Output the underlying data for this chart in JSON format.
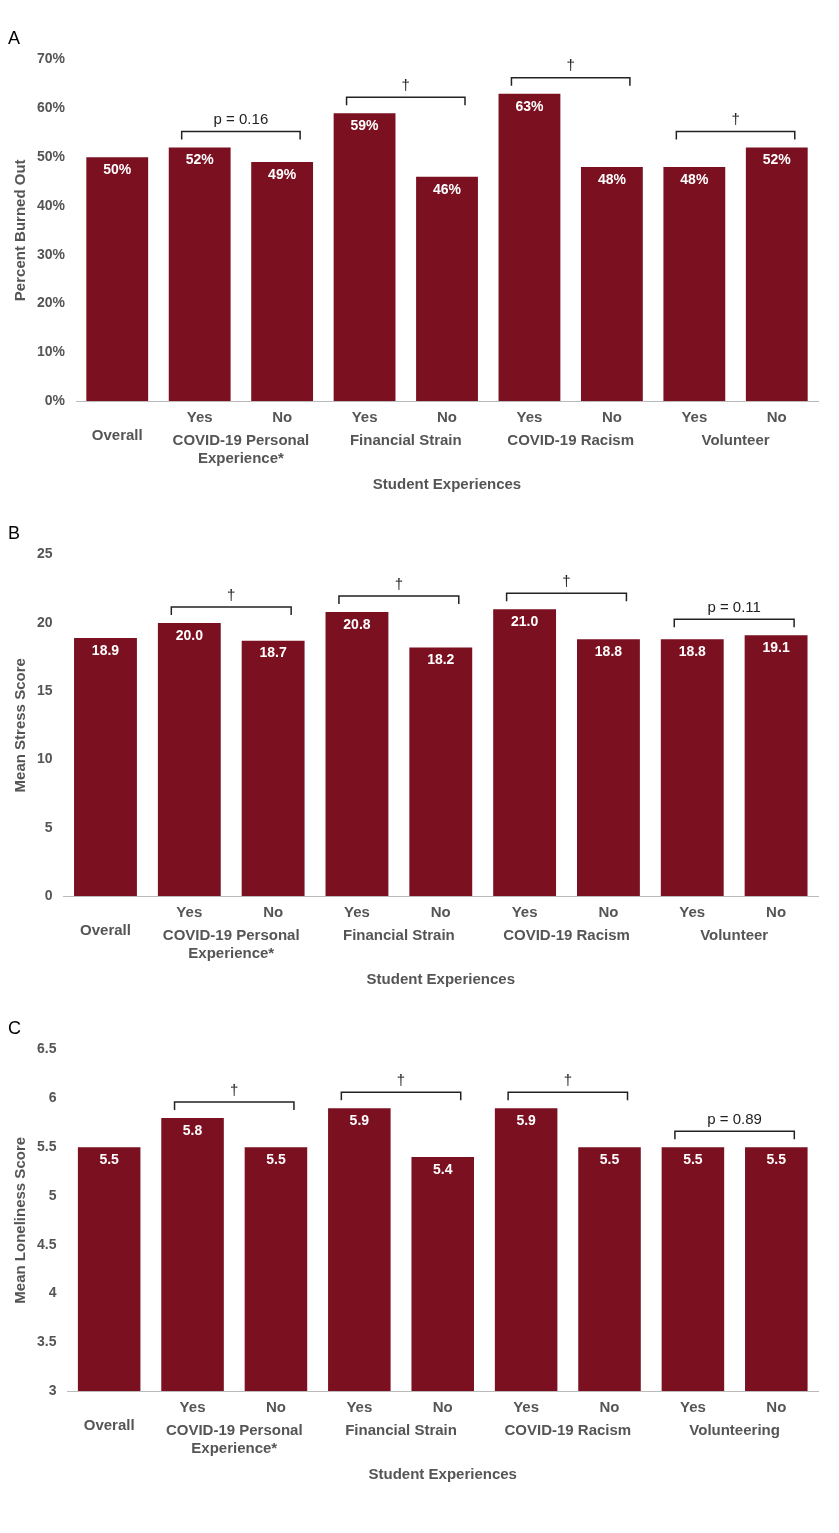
{
  "chart_data": [
    {
      "type": "bar",
      "title": "A",
      "xlabel": "Student Experiences",
      "ylabel": "Percent Burned Out",
      "categories": [
        "Overall",
        "Yes",
        "No",
        "Yes",
        "No",
        "Yes",
        "No",
        "Yes",
        "No"
      ],
      "values": [
        50,
        52,
        49,
        59,
        46,
        63,
        48,
        48,
        52
      ],
      "value_labels": [
        "50%",
        "52%",
        "49%",
        "59%",
        "46%",
        "63%",
        "48%",
        "48%",
        "52%"
      ],
      "color": "#7b1020",
      "ylim": [
        0,
        70
      ],
      "yticks": [
        {
          "value": 0,
          "label": "0%"
        },
        {
          "value": 10,
          "label": "10%"
        },
        {
          "value": 20,
          "label": "20%"
        },
        {
          "value": 30,
          "label": "30%"
        },
        {
          "value": 40,
          "label": "40%"
        },
        {
          "value": 50,
          "label": "50%"
        },
        {
          "value": 60,
          "label": "60%"
        },
        {
          "value": 70,
          "label": "70%"
        }
      ],
      "grid": false,
      "legend": false,
      "annotations": [
        "p = 0.16",
        "†",
        "†",
        "†",
        "COVID-19 Personal Experience*",
        "Financial Strain",
        "COVID-19 Racism",
        "Volunteer"
      ]
    },
    {
      "type": "bar",
      "title": "B",
      "xlabel": "Student Experiences",
      "ylabel": "Mean Stress Score",
      "categories": [
        "Overall",
        "Yes",
        "No",
        "Yes",
        "No",
        "Yes",
        "No",
        "Yes",
        "No"
      ],
      "values": [
        18.9,
        20.0,
        18.7,
        20.8,
        18.2,
        21.0,
        18.8,
        18.8,
        19.1
      ],
      "value_labels": [
        "18.9",
        "20.0",
        "18.7",
        "20.8",
        "18.2",
        "21.0",
        "18.8",
        "18.8",
        "19.1"
      ],
      "color": "#7b1020",
      "ylim": [
        0,
        25
      ],
      "yticks": [
        0,
        5,
        10,
        15,
        20,
        25
      ],
      "grid": false,
      "legend": false,
      "annotations": [
        "†",
        "†",
        "†",
        "p = 0.11",
        "COVID-19 Personal Experience*",
        "Financial Strain",
        "COVID-19 Racism",
        "Volunteer"
      ]
    },
    {
      "type": "bar",
      "title": "C",
      "xlabel": "Student Experiences",
      "ylabel": "Mean Loneliness Score",
      "categories": [
        "Overall",
        "Yes",
        "No",
        "Yes",
        "No",
        "Yes",
        "No",
        "Yes",
        "No"
      ],
      "values": [
        5.5,
        5.8,
        5.5,
        5.9,
        5.4,
        5.9,
        5.5,
        5.5,
        5.5
      ],
      "value_labels": [
        "5.5",
        "5.8",
        "5.5",
        "5.9",
        "5.4",
        "5.9",
        "5.5",
        "5.5",
        "5.5"
      ],
      "color": "#7b1020",
      "ylim": [
        3,
        6.5
      ],
      "yticks": [
        3,
        3.5,
        4,
        4.5,
        5,
        5.5,
        6,
        6.5
      ],
      "grid": false,
      "legend": false,
      "annotations": [
        "†",
        "†",
        "†",
        "p = 0.89",
        "COVID-19 Personal Experience*",
        "Financial Strain",
        "COVID-19 Racism",
        "Volunteering"
      ]
    }
  ]
}
